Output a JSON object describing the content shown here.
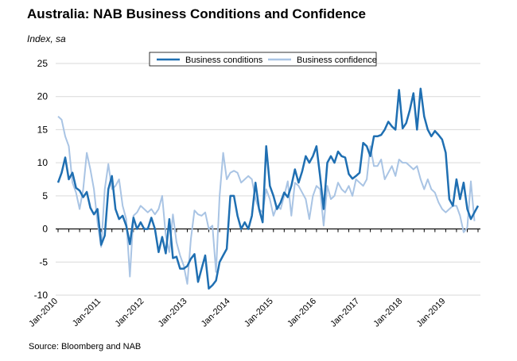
{
  "chart_data": {
    "type": "line",
    "title": "Australia: NAB Business Conditions and Confidence",
    "ylabel": "Index, sa",
    "source": "Source: Bloomberg and NAB",
    "ylim": [
      -10,
      25
    ],
    "yticks": [
      -10,
      -5,
      0,
      5,
      10,
      15,
      20,
      25
    ],
    "x_start": "Jan-2010",
    "x_end": "Jun-2019",
    "xticks": [
      "Jan-2010",
      "Jan-2011",
      "Jan-2012",
      "Jan-2013",
      "Jan-2014",
      "Jan-2015",
      "Jan-2016",
      "Jan-2017",
      "Jan-2018",
      "Jan-2019"
    ],
    "legend_position": "top-center",
    "series": [
      {
        "name": "Business conditions",
        "color": "#1f6fb2",
        "values": [
          7,
          8.5,
          10.8,
          7.5,
          8.5,
          6.2,
          5.8,
          4.8,
          5.6,
          3.2,
          2.2,
          3,
          -2.4,
          -1,
          6,
          8,
          3,
          1.5,
          2,
          0.5,
          -2.3,
          1.7,
          0,
          1,
          0,
          0,
          1.7,
          0,
          -3.5,
          -1.2,
          -3.7,
          1.5,
          -4.4,
          -4.2,
          -6,
          -6,
          -5.6,
          -4.5,
          -3.8,
          -8,
          -6,
          -4,
          -9,
          -8.5,
          -7.8,
          -5,
          -4,
          -3,
          5,
          5,
          2,
          0,
          1,
          0,
          2,
          7,
          3,
          1,
          12.5,
          6.5,
          5,
          3,
          4,
          5.5,
          4.8,
          6.5,
          9,
          7,
          8.7,
          11,
          10,
          11,
          12.5,
          8,
          3,
          10,
          11,
          10,
          11.7,
          11,
          10.8,
          8.3,
          7.6,
          8,
          8.5,
          13,
          12.5,
          11,
          14,
          14,
          14.2,
          15,
          16.2,
          15.5,
          15,
          21,
          15.2,
          16,
          18,
          20.5,
          15,
          21.2,
          17,
          15,
          14,
          14.8,
          14.2,
          13.5,
          11.5,
          4.5,
          3.5,
          7.5,
          4.5,
          7,
          3,
          1.5,
          2.5,
          3.5
        ]
      },
      {
        "name": "Business confidence",
        "color": "#a9c4e4",
        "values": [
          17,
          16.5,
          14,
          12.5,
          7,
          5.5,
          3,
          6,
          11.5,
          9,
          6,
          1,
          -2.7,
          6,
          9.8,
          6,
          6.5,
          7.5,
          3.5,
          1.5,
          -7.2,
          2,
          2.5,
          3.5,
          3,
          2.5,
          3,
          2.2,
          3,
          5,
          -1,
          -3.5,
          2.2,
          -2,
          -4,
          -5.5,
          -8.3,
          -1.5,
          2.8,
          2.2,
          2,
          2.5,
          0,
          0.5,
          -6.5,
          5,
          11.5,
          7.5,
          8.5,
          8.8,
          8.5,
          7,
          7.5,
          8,
          7.5,
          4.5,
          3,
          2.5,
          6,
          4.5,
          2,
          3.5,
          3,
          5,
          7.2,
          2,
          7,
          6.5,
          5.5,
          4.5,
          1.5,
          5,
          6.5,
          6,
          0.5,
          6.5,
          4.5,
          5,
          7,
          6,
          5.5,
          6.5,
          5,
          7.5,
          7,
          6.5,
          7.5,
          12.5,
          9.5,
          9.5,
          10.5,
          7.5,
          8.5,
          9.5,
          8,
          10.5,
          10,
          10,
          9.5,
          9,
          9.5,
          7.5,
          6,
          7.5,
          6,
          5.5,
          4,
          3,
          2.5,
          3,
          3.5,
          3.5,
          2,
          -0.5,
          0.2,
          7.2,
          1.2
        ]
      }
    ]
  }
}
